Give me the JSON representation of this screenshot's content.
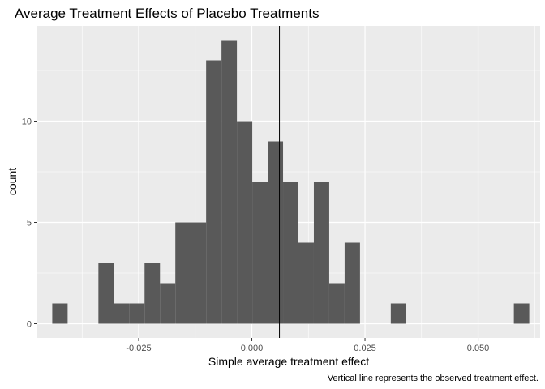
{
  "chart_data": {
    "type": "histogram",
    "title": "Average Treatment Effects of Placebo Treatments",
    "xlabel": "Simple average treatment effect",
    "ylabel": "count",
    "caption": "Vertical line represents the observed treatment effect.",
    "bin_width": 0.0034,
    "bins": [
      {
        "x0": -0.0441,
        "x1": -0.0407,
        "count": 1
      },
      {
        "x0": -0.0407,
        "x1": -0.0373,
        "count": 0
      },
      {
        "x0": -0.0373,
        "x1": -0.0339,
        "count": 0
      },
      {
        "x0": -0.0339,
        "x1": -0.0305,
        "count": 3
      },
      {
        "x0": -0.0305,
        "x1": -0.0271,
        "count": 1
      },
      {
        "x0": -0.0271,
        "x1": -0.0237,
        "count": 1
      },
      {
        "x0": -0.0237,
        "x1": -0.0203,
        "count": 3
      },
      {
        "x0": -0.0203,
        "x1": -0.0169,
        "count": 2
      },
      {
        "x0": -0.0169,
        "x1": -0.0135,
        "count": 5
      },
      {
        "x0": -0.0135,
        "x1": -0.0101,
        "count": 5
      },
      {
        "x0": -0.0101,
        "x1": -0.0067,
        "count": 13
      },
      {
        "x0": -0.0067,
        "x1": -0.0033,
        "count": 14
      },
      {
        "x0": -0.0033,
        "x1": 0.0001,
        "count": 10
      },
      {
        "x0": 0.0001,
        "x1": 0.0035,
        "count": 7
      },
      {
        "x0": 0.0035,
        "x1": 0.0069,
        "count": 9
      },
      {
        "x0": 0.0069,
        "x1": 0.0103,
        "count": 7
      },
      {
        "x0": 0.0103,
        "x1": 0.0137,
        "count": 4
      },
      {
        "x0": 0.0137,
        "x1": 0.0171,
        "count": 7
      },
      {
        "x0": 0.0171,
        "x1": 0.0205,
        "count": 2
      },
      {
        "x0": 0.0205,
        "x1": 0.0239,
        "count": 4
      },
      {
        "x0": 0.0239,
        "x1": 0.0273,
        "count": 0
      },
      {
        "x0": 0.0273,
        "x1": 0.0307,
        "count": 0
      },
      {
        "x0": 0.0307,
        "x1": 0.0341,
        "count": 1
      },
      {
        "x0": 0.0341,
        "x1": 0.0375,
        "count": 0
      },
      {
        "x0": 0.0375,
        "x1": 0.0409,
        "count": 0
      },
      {
        "x0": 0.0409,
        "x1": 0.0443,
        "count": 0
      },
      {
        "x0": 0.0443,
        "x1": 0.0477,
        "count": 0
      },
      {
        "x0": 0.0477,
        "x1": 0.0511,
        "count": 0
      },
      {
        "x0": 0.0511,
        "x1": 0.0545,
        "count": 0
      },
      {
        "x0": 0.0545,
        "x1": 0.0579,
        "count": 0
      },
      {
        "x0": 0.0579,
        "x1": 0.0613,
        "count": 1
      }
    ],
    "observed_effect": 0.0061,
    "xlim": [
      -0.0474,
      0.0637
    ],
    "ylim": [
      -0.7,
      14.7
    ],
    "x_ticks": [
      {
        "value": -0.025,
        "label": "-0.025"
      },
      {
        "value": 0,
        "label": "0.000"
      },
      {
        "value": 0.025,
        "label": "0.025"
      },
      {
        "value": 0.05,
        "label": "0.050"
      }
    ],
    "y_ticks": [
      {
        "value": 0,
        "label": "0"
      },
      {
        "value": 5,
        "label": "5"
      },
      {
        "value": 10,
        "label": "10"
      }
    ],
    "grid": true,
    "colors": {
      "panel": "#EBEBEB",
      "grid_major": "#FFFFFF",
      "bar": "#595959",
      "observed_line": "#000000"
    }
  }
}
